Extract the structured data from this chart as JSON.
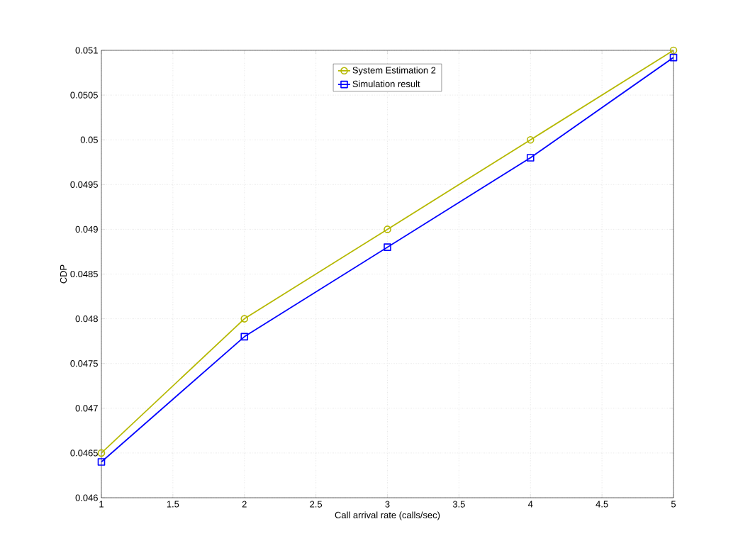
{
  "chart_data": {
    "type": "line",
    "xlabel": "Call arrival rate (calls/sec)",
    "ylabel": "CDP",
    "x": [
      1,
      2,
      3,
      4,
      5
    ],
    "series": [
      {
        "name": "System Estimation 2",
        "color": "#b5b800",
        "marker": "circle",
        "values": [
          0.0465,
          0.048,
          0.049,
          0.05,
          0.051
        ]
      },
      {
        "name": "Simulation result",
        "color": "#0000ff",
        "marker": "square",
        "values": [
          0.0464,
          0.0478,
          0.0488,
          0.0498,
          0.05092
        ]
      }
    ],
    "xlim": [
      1,
      5
    ],
    "xticks": [
      1,
      1.5,
      2,
      2.5,
      3,
      3.5,
      4,
      4.5,
      5
    ],
    "ylim": [
      0.046,
      0.051
    ],
    "yticks": [
      0.046,
      0.0465,
      0.047,
      0.0475,
      0.048,
      0.0485,
      0.049,
      0.0495,
      0.05,
      0.0505,
      0.051
    ],
    "grid": true,
    "legend": "top",
    "line_style": "solid"
  }
}
